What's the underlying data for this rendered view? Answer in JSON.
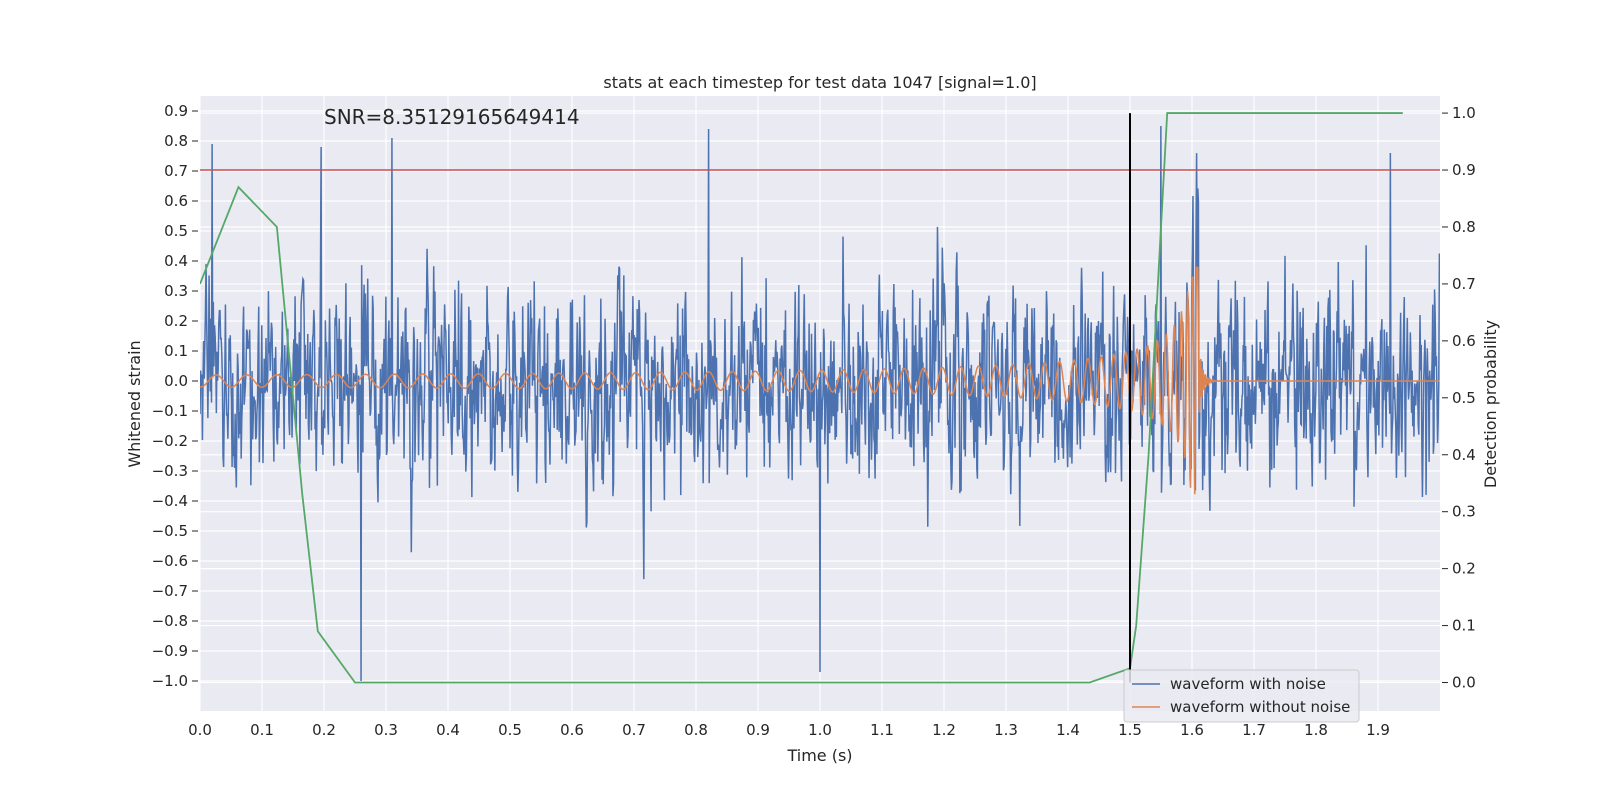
{
  "chart_data": {
    "type": "line",
    "title": "stats at each timestep for test data 1047 [signal=1.0]",
    "annotation": "SNR=8.35129165649414",
    "xlabel": "Time (s)",
    "ylabel_left": "Whitened strain",
    "ylabel_right": "Detection probability",
    "xlim": [
      0.0,
      2.0
    ],
    "ylim_left": [
      -1.1,
      0.95
    ],
    "ylim_right": [
      -0.05,
      1.03
    ],
    "x_ticks": [
      "0.0",
      "0.1",
      "0.2",
      "0.3",
      "0.4",
      "0.5",
      "0.6",
      "0.7",
      "0.8",
      "0.9",
      "1.0",
      "1.1",
      "1.2",
      "1.3",
      "1.4",
      "1.5",
      "1.6",
      "1.7",
      "1.8",
      "1.9"
    ],
    "y_ticks_left": [
      "0.9",
      "0.8",
      "0.7",
      "0.6",
      "0.5",
      "0.4",
      "0.3",
      "0.2",
      "0.1",
      "0.0",
      "−0.1",
      "−0.2",
      "−0.3",
      "−0.4",
      "−0.5",
      "−0.6",
      "−0.7",
      "−0.8",
      "−0.9",
      "−1.0"
    ],
    "y_ticks_right": [
      "1.0",
      "0.9",
      "0.8",
      "0.7",
      "0.6",
      "0.5",
      "0.4",
      "0.3",
      "0.2",
      "0.1",
      "0.0"
    ],
    "grid": true,
    "legend_position": "bottom-right",
    "threshold_probability": 0.9,
    "event_time": 1.5,
    "series": [
      {
        "name": "waveform with noise",
        "color": "#4c72b0",
        "axis": "left",
        "kind": "noise",
        "x_range": [
          0.0,
          2.0
        ],
        "amplitude": 0.24,
        "min": -1.0,
        "max": 0.85
      },
      {
        "name": "waveform without noise",
        "color": "#dd8452",
        "axis": "left",
        "kind": "chirp",
        "x_range": [
          0.0,
          2.0
        ],
        "merger_time": 1.61,
        "peak_amplitude": 0.38,
        "start_amplitude": 0.02
      },
      {
        "name": "",
        "color": "#55a868",
        "axis": "right",
        "kind": "probability",
        "x": [
          0.0,
          0.062,
          0.124,
          0.165,
          0.19,
          0.25,
          0.3,
          1.435,
          1.5,
          1.51,
          1.53,
          1.56,
          1.94
        ],
        "y": [
          0.7,
          0.87,
          0.8,
          0.33,
          0.09,
          0.0,
          0.0,
          0.0,
          0.025,
          0.1,
          0.4,
          1.0,
          1.0
        ]
      }
    ],
    "threshold_color": "#c44e52",
    "event_line_color": "#000000",
    "notable_spikes": [
      {
        "x": 0.02,
        "y": 0.79
      },
      {
        "x": 0.195,
        "y": 0.78
      },
      {
        "x": 0.26,
        "y": -1.0
      },
      {
        "x": 0.31,
        "y": 0.81
      },
      {
        "x": 0.82,
        "y": 0.84
      },
      {
        "x": 1.0,
        "y": -0.97
      },
      {
        "x": 1.55,
        "y": 0.85
      },
      {
        "x": 1.92,
        "y": 0.76
      }
    ]
  }
}
